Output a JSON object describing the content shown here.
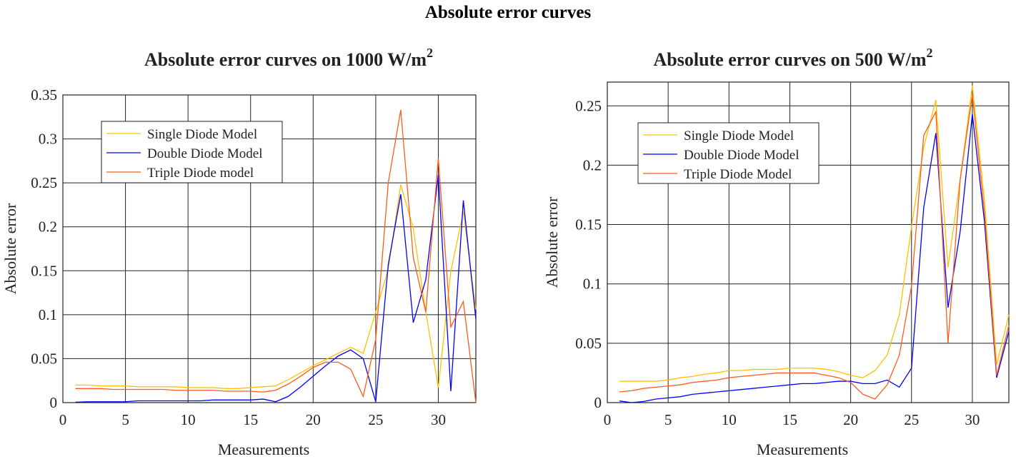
{
  "main_title": "Absolute error curves",
  "colors": {
    "single": "#FFC000",
    "double": "#0000FF",
    "triple": "#FF5A1A",
    "grid": "#222222"
  },
  "chart_data": [
    {
      "type": "line",
      "title": "Absolute error curves on 1000 W/m",
      "title_superscript": "2",
      "xlabel": "Measurements",
      "ylabel": "Absolute error",
      "xlim": [
        0,
        33
      ],
      "ylim": [
        0,
        0.35
      ],
      "xticks": [
        "0",
        "5",
        "10",
        "15",
        "20",
        "25",
        "30"
      ],
      "yticks": [
        "0",
        "0.05",
        "0.1",
        "0.15",
        "0.2",
        "0.25",
        "0.3",
        "0.35"
      ],
      "grid": true,
      "legend_position": "top-left",
      "x": [
        1,
        2,
        3,
        4,
        5,
        6,
        7,
        8,
        9,
        10,
        11,
        12,
        13,
        14,
        15,
        16,
        17,
        18,
        19,
        20,
        21,
        22,
        23,
        24,
        25,
        26,
        27,
        28,
        29,
        30,
        31,
        32,
        33
      ],
      "series": [
        {
          "name": "Single Diode Model",
          "color_key": "single",
          "values": [
            0.02,
            0.02,
            0.019,
            0.019,
            0.019,
            0.018,
            0.018,
            0.018,
            0.018,
            0.017,
            0.017,
            0.017,
            0.016,
            0.016,
            0.017,
            0.018,
            0.019,
            0.026,
            0.034,
            0.042,
            0.049,
            0.056,
            0.063,
            0.056,
            0.103,
            0.152,
            0.248,
            0.198,
            0.103,
            0.017,
            0.149,
            0.217,
            0.106
          ]
        },
        {
          "name": "Double Diode Model",
          "color_key": "double",
          "values": [
            0.0005,
            0.001,
            0.001,
            0.001,
            0.001,
            0.002,
            0.002,
            0.002,
            0.002,
            0.002,
            0.002,
            0.003,
            0.003,
            0.003,
            0.003,
            0.004,
            0.001,
            0.007,
            0.018,
            0.03,
            0.042,
            0.053,
            0.06,
            0.05,
            0.001,
            0.157,
            0.237,
            0.091,
            0.14,
            0.259,
            0.013,
            0.23,
            0.095
          ]
        },
        {
          "name": "Triple Diode  model",
          "color_key": "triple",
          "values": [
            0.016,
            0.016,
            0.016,
            0.015,
            0.015,
            0.015,
            0.015,
            0.015,
            0.014,
            0.014,
            0.014,
            0.014,
            0.013,
            0.013,
            0.013,
            0.012,
            0.014,
            0.021,
            0.03,
            0.04,
            0.046,
            0.046,
            0.038,
            0.007,
            0.072,
            0.25,
            0.333,
            0.165,
            0.103,
            0.278,
            0.086,
            0.115,
            0.0
          ]
        }
      ]
    },
    {
      "type": "line",
      "title": "Absolute error curves on 500 W/m",
      "title_superscript": "2",
      "xlabel": "Measurements",
      "ylabel": "Absolute error",
      "xlim": [
        0,
        33
      ],
      "ylim": [
        0,
        0.27
      ],
      "xticks": [
        "0",
        "5",
        "10",
        "15",
        "20",
        "25",
        "30"
      ],
      "yticks": [
        "0",
        "0.05",
        "0.1",
        "0.15",
        "0.2",
        "0.25"
      ],
      "grid": true,
      "legend_position": "top-left",
      "x": [
        1,
        2,
        3,
        4,
        5,
        6,
        7,
        8,
        9,
        10,
        11,
        12,
        13,
        14,
        15,
        16,
        17,
        18,
        19,
        20,
        21,
        22,
        23,
        24,
        25,
        26,
        27,
        28,
        29,
        30,
        31,
        32,
        33
      ],
      "series": [
        {
          "name": "Single Diode Model",
          "color_key": "single",
          "values": [
            0.018,
            0.018,
            0.018,
            0.018,
            0.019,
            0.021,
            0.022,
            0.024,
            0.025,
            0.027,
            0.027,
            0.028,
            0.028,
            0.028,
            0.029,
            0.029,
            0.029,
            0.028,
            0.026,
            0.023,
            0.021,
            0.027,
            0.04,
            0.074,
            0.148,
            0.215,
            0.255,
            0.114,
            0.188,
            0.267,
            0.17,
            0.032,
            0.074
          ]
        },
        {
          "name": "Double Diode Model",
          "color_key": "double",
          "values": [
            0.0014,
            0.0,
            0.001,
            0.003,
            0.004,
            0.005,
            0.007,
            0.008,
            0.009,
            0.01,
            0.011,
            0.012,
            0.013,
            0.014,
            0.015,
            0.016,
            0.016,
            0.017,
            0.018,
            0.018,
            0.016,
            0.016,
            0.019,
            0.013,
            0.029,
            0.164,
            0.227,
            0.08,
            0.144,
            0.243,
            0.152,
            0.021,
            0.06
          ]
        },
        {
          "name": "Triple Diode  Model",
          "color_key": "triple",
          "values": [
            0.009,
            0.01,
            0.012,
            0.013,
            0.014,
            0.015,
            0.017,
            0.018,
            0.019,
            0.021,
            0.022,
            0.023,
            0.024,
            0.025,
            0.025,
            0.025,
            0.025,
            0.023,
            0.021,
            0.017,
            0.007,
            0.003,
            0.015,
            0.04,
            0.098,
            0.225,
            0.245,
            0.05,
            0.188,
            0.259,
            0.16,
            0.023,
            0.065
          ]
        }
      ]
    }
  ]
}
